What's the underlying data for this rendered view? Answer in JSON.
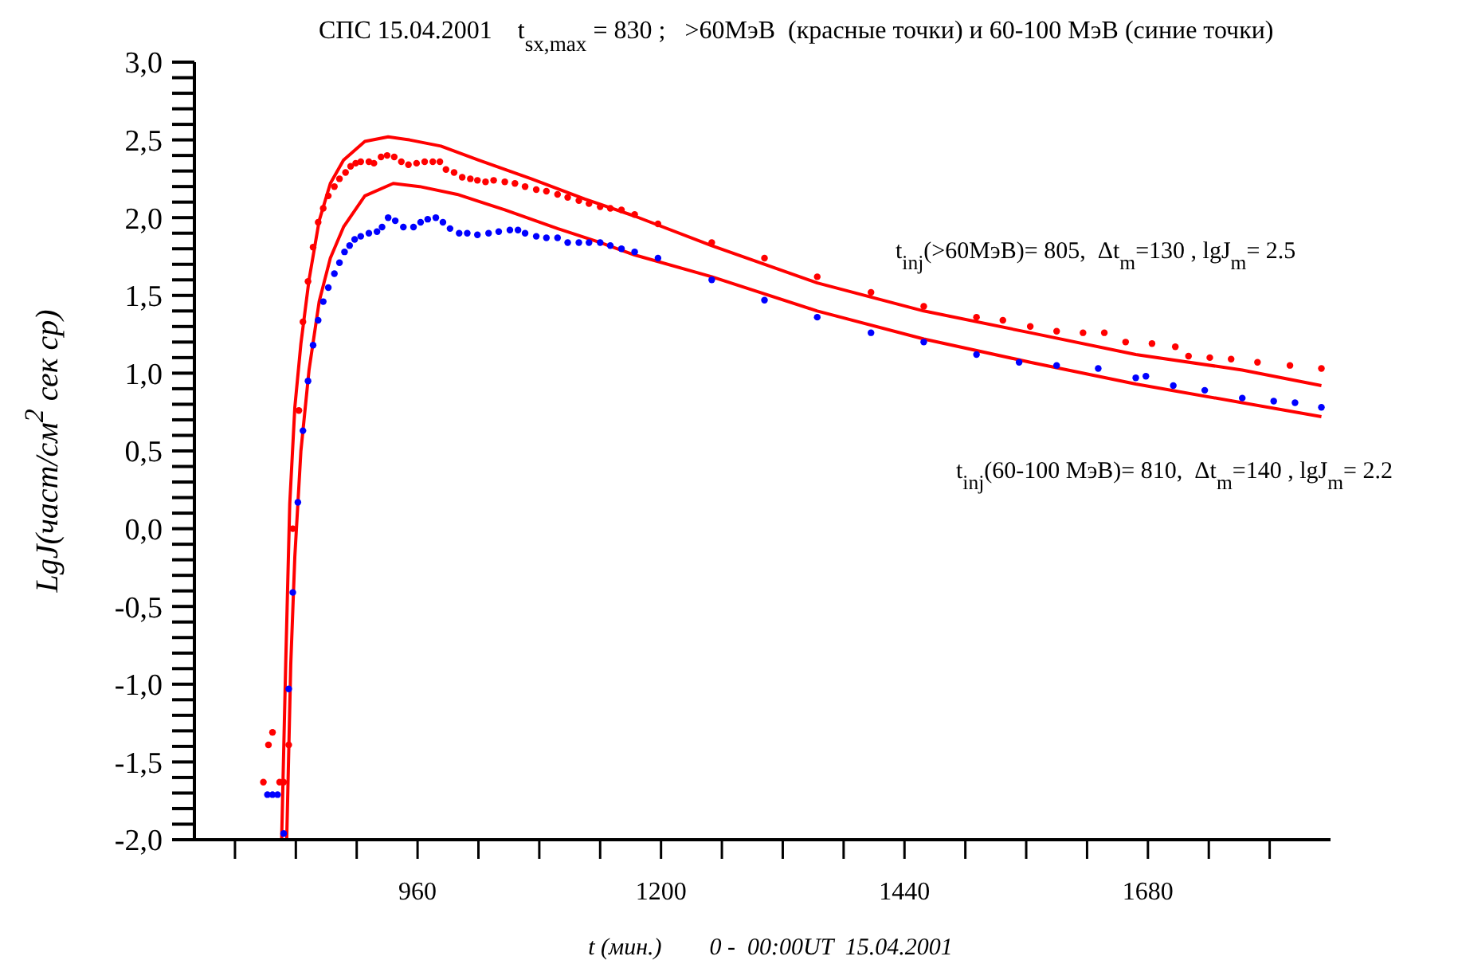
{
  "chart_data": {
    "type": "scatter",
    "title": "СПС 15.04.2001    t$_{sx,max}$ = 830 ;   >60МэВ  (красные точки) и 60-100 МэВ (синие точки)",
    "xlabel": "t (мин.)        0 -  00:00UT  15.04.2001",
    "ylabel": "LgJ(част/см$^{2}$ сек ср)",
    "annotations": [
      "t$_{inj}$(>60МэВ)= 805,  Δt$_{m}$=130 , lgJ$_{m}$= 2.5",
      "t$_{inj}$(60-100 МэВ)= 810,  Δt$_{m}$=140 , lgJ$_{m}$= 2.2"
    ],
    "xlim": [
      740,
      1860
    ],
    "ylim": [
      -2,
      3
    ],
    "xticks": [
      {
        "value": 780,
        "label": null
      },
      {
        "value": 840,
        "label": null
      },
      {
        "value": 900,
        "label": null
      },
      {
        "value": 960,
        "label": "960"
      },
      {
        "value": 1020,
        "label": null
      },
      {
        "value": 1080,
        "label": null
      },
      {
        "value": 1140,
        "label": null
      },
      {
        "value": 1200,
        "label": "1200"
      },
      {
        "value": 1260,
        "label": null
      },
      {
        "value": 1320,
        "label": null
      },
      {
        "value": 1380,
        "label": null
      },
      {
        "value": 1440,
        "label": "1440"
      },
      {
        "value": 1500,
        "label": null
      },
      {
        "value": 1560,
        "label": null
      },
      {
        "value": 1620,
        "label": null
      },
      {
        "value": 1680,
        "label": "1680"
      },
      {
        "value": 1740,
        "label": null
      },
      {
        "value": 1800,
        "label": null
      }
    ],
    "yticks": [
      {
        "value": -2,
        "label": "-2,0"
      },
      {
        "value": -1.9,
        "label": null
      },
      {
        "value": -1.8,
        "label": null
      },
      {
        "value": -1.7,
        "label": null
      },
      {
        "value": -1.6,
        "label": null
      },
      {
        "value": -1.5,
        "label": "-1,5"
      },
      {
        "value": -1.4,
        "label": null
      },
      {
        "value": -1.3,
        "label": null
      },
      {
        "value": -1.2,
        "label": null
      },
      {
        "value": -1.1,
        "label": null
      },
      {
        "value": -1,
        "label": "-1,0"
      },
      {
        "value": -0.9,
        "label": null
      },
      {
        "value": -0.8,
        "label": null
      },
      {
        "value": -0.7,
        "label": null
      },
      {
        "value": -0.6,
        "label": null
      },
      {
        "value": -0.5,
        "label": "-0,5"
      },
      {
        "value": -0.4,
        "label": null
      },
      {
        "value": -0.3,
        "label": null
      },
      {
        "value": -0.2,
        "label": null
      },
      {
        "value": -0.1,
        "label": null
      },
      {
        "value": 0,
        "label": "0,0"
      },
      {
        "value": 0.1,
        "label": null
      },
      {
        "value": 0.2,
        "label": null
      },
      {
        "value": 0.3,
        "label": null
      },
      {
        "value": 0.4,
        "label": null
      },
      {
        "value": 0.5,
        "label": "0,5"
      },
      {
        "value": 0.6,
        "label": null
      },
      {
        "value": 0.7,
        "label": null
      },
      {
        "value": 0.8,
        "label": null
      },
      {
        "value": 0.9,
        "label": null
      },
      {
        "value": 1,
        "label": "1,0"
      },
      {
        "value": 1.1,
        "label": null
      },
      {
        "value": 1.2,
        "label": null
      },
      {
        "value": 1.3,
        "label": null
      },
      {
        "value": 1.4,
        "label": null
      },
      {
        "value": 1.5,
        "label": "1,5"
      },
      {
        "value": 1.6,
        "label": null
      },
      {
        "value": 1.7,
        "label": null
      },
      {
        "value": 1.8,
        "label": null
      },
      {
        "value": 1.9,
        "label": null
      },
      {
        "value": 2,
        "label": "2,0"
      },
      {
        "value": 2.1,
        "label": null
      },
      {
        "value": 2.2,
        "label": null
      },
      {
        "value": 2.3,
        "label": null
      },
      {
        "value": 2.4,
        "label": null
      },
      {
        "value": 2.5,
        "label": "2,5"
      },
      {
        "value": 2.6,
        "label": null
      },
      {
        "value": 2.7,
        "label": null
      },
      {
        "value": 2.8,
        "label": null
      },
      {
        "value": 2.9,
        "label": null
      },
      {
        "value": 3,
        "label": "3,0"
      }
    ],
    "marker": "circle",
    "grid": false,
    "series": [
      {
        "color": "#ff0000",
        "x": [
          808,
          813,
          817,
          824,
          828,
          833,
          837,
          843,
          847,
          852,
          857,
          862,
          867,
          872,
          878,
          883,
          889,
          894,
          899,
          904,
          912,
          917,
          924,
          930,
          937,
          944,
          951,
          959,
          967,
          975,
          982,
          988,
          996,
          1004,
          1012,
          1019,
          1027,
          1035,
          1046,
          1056,
          1066,
          1077,
          1087,
          1098,
          1108,
          1119,
          1129,
          1140,
          1150,
          1161,
          1174,
          1197,
          1250,
          1302,
          1354,
          1407,
          1459,
          1511,
          1537,
          1564,
          1590,
          1616,
          1637,
          1658,
          1684,
          1707,
          1720,
          1741,
          1762,
          1788,
          1820,
          1851
        ],
        "values": [
          -1.63,
          -1.39,
          -1.31,
          -1.63,
          -1.63,
          -1.39,
          0.0,
          0.76,
          1.33,
          1.59,
          1.81,
          1.97,
          2.06,
          2.14,
          2.2,
          2.25,
          2.29,
          2.33,
          2.35,
          2.36,
          2.36,
          2.35,
          2.39,
          2.4,
          2.39,
          2.36,
          2.34,
          2.35,
          2.36,
          2.36,
          2.36,
          2.31,
          2.29,
          2.26,
          2.25,
          2.24,
          2.23,
          2.24,
          2.23,
          2.22,
          2.2,
          2.18,
          2.17,
          2.15,
          2.13,
          2.11,
          2.09,
          2.07,
          2.06,
          2.05,
          2.02,
          1.96,
          1.84,
          1.74,
          1.62,
          1.52,
          1.43,
          1.36,
          1.34,
          1.3,
          1.27,
          1.26,
          1.26,
          1.2,
          1.19,
          1.17,
          1.11,
          1.1,
          1.09,
          1.07,
          1.05,
          1.03
        ]
      },
      {
        "color": "#0000ff",
        "x": [
          812,
          817,
          822,
          828,
          833,
          837,
          842,
          847,
          852,
          857,
          862,
          867,
          872,
          878,
          883,
          888,
          893,
          898,
          904,
          912,
          920,
          925,
          931,
          938,
          946,
          956,
          963,
          970,
          978,
          985,
          992,
          1001,
          1009,
          1019,
          1030,
          1040,
          1051,
          1059,
          1066,
          1077,
          1087,
          1098,
          1108,
          1119,
          1129,
          1140,
          1150,
          1161,
          1174,
          1197,
          1250,
          1302,
          1354,
          1407,
          1459,
          1511,
          1553,
          1590,
          1631,
          1668,
          1678,
          1705,
          1736,
          1773,
          1804,
          1825,
          1851
        ],
        "values": [
          -1.71,
          -1.71,
          -1.71,
          -1.96,
          -1.03,
          -0.41,
          0.17,
          0.63,
          0.95,
          1.18,
          1.34,
          1.46,
          1.55,
          1.64,
          1.71,
          1.78,
          1.82,
          1.86,
          1.88,
          1.9,
          1.91,
          1.94,
          2.0,
          1.98,
          1.94,
          1.94,
          1.97,
          1.99,
          2.0,
          1.97,
          1.93,
          1.9,
          1.9,
          1.89,
          1.9,
          1.91,
          1.92,
          1.92,
          1.9,
          1.88,
          1.87,
          1.87,
          1.84,
          1.84,
          1.84,
          1.84,
          1.82,
          1.8,
          1.78,
          1.74,
          1.6,
          1.47,
          1.36,
          1.26,
          1.2,
          1.12,
          1.07,
          1.05,
          1.03,
          0.97,
          0.98,
          0.92,
          0.89,
          0.84,
          0.82,
          0.81,
          0.78
        ]
      },
      {
        "type": "line",
        "marker": "none",
        "color": "#ff0000",
        "line_style": "solid",
        "x": [
          826,
          830,
          834,
          839,
          845,
          853,
          863,
          874,
          887,
          908,
          931,
          952,
          983,
          1020,
          1072,
          1125,
          1174,
          1250,
          1354,
          1459,
          1564,
          1668,
          1773,
          1851
        ],
        "values": [
          -2.0,
          -0.87,
          0.16,
          0.78,
          1.19,
          1.6,
          1.98,
          2.22,
          2.37,
          2.49,
          2.52,
          2.5,
          2.46,
          2.37,
          2.25,
          2.12,
          2.01,
          1.82,
          1.58,
          1.4,
          1.26,
          1.12,
          1.02,
          0.92
        ]
      },
      {
        "type": "line",
        "marker": "none",
        "color": "#ff0000",
        "line_style": "solid",
        "x": [
          831,
          835,
          839,
          845,
          853,
          863,
          874,
          887,
          908,
          936,
          962,
          999,
          1046,
          1098,
          1140,
          1174,
          1250,
          1354,
          1459,
          1564,
          1668,
          1773,
          1851
        ],
        "values": [
          -2.0,
          -0.87,
          -0.18,
          0.5,
          1.02,
          1.46,
          1.74,
          1.94,
          2.14,
          2.22,
          2.2,
          2.15,
          2.05,
          1.93,
          1.84,
          1.76,
          1.62,
          1.4,
          1.22,
          1.07,
          0.93,
          0.81,
          0.72
        ]
      }
    ]
  }
}
